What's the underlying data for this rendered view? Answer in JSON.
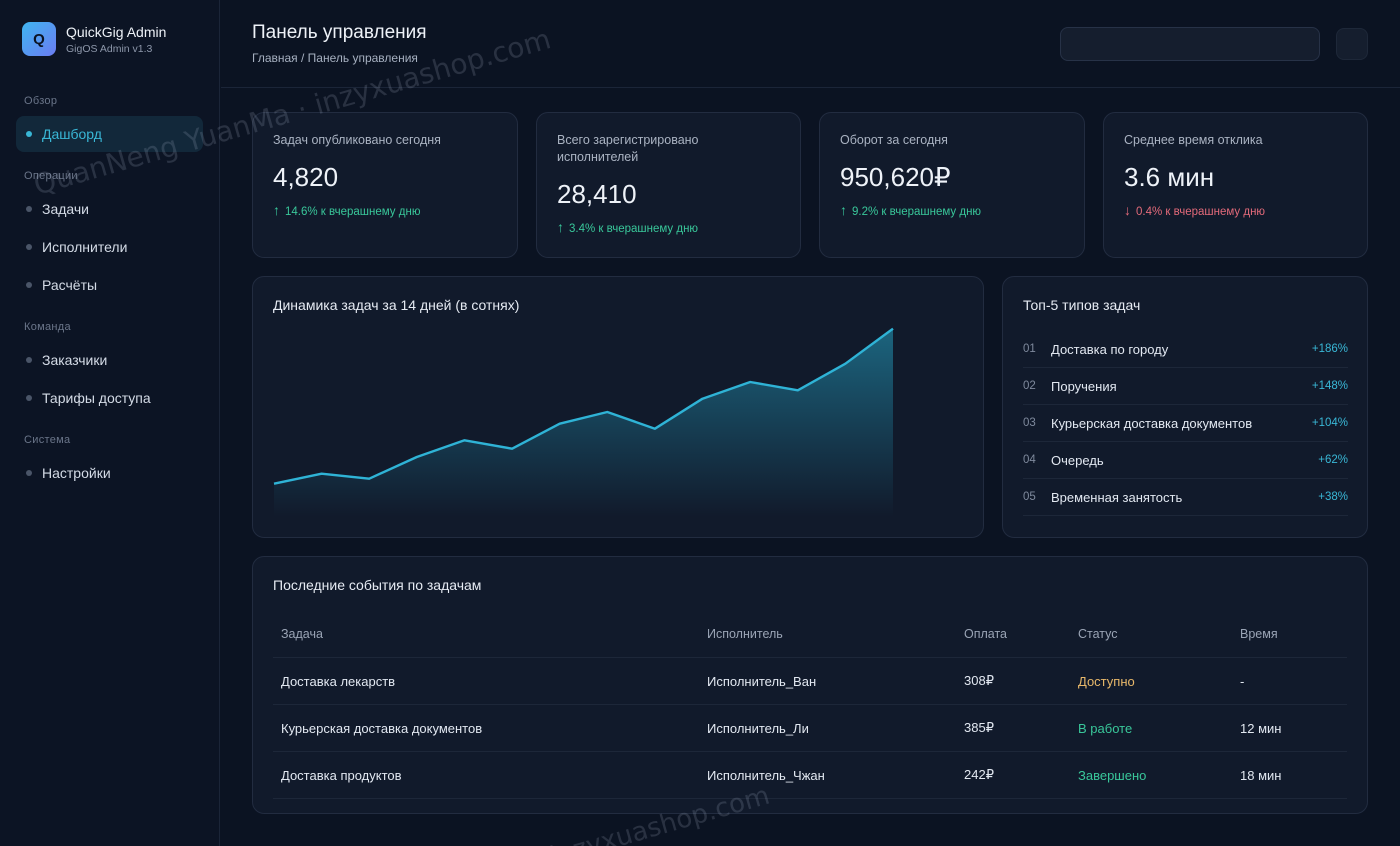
{
  "brand": {
    "logo_letter": "Q",
    "title": "QuickGig Admin",
    "subtitle": "GigOS Admin v1.3"
  },
  "sidebar": {
    "sections": [
      {
        "label": "Обзор",
        "items": [
          {
            "label": "Дашборд",
            "active": true
          }
        ]
      },
      {
        "label": "Операции",
        "items": [
          {
            "label": "Задачи"
          },
          {
            "label": "Исполнители"
          },
          {
            "label": "Расчёты"
          }
        ]
      },
      {
        "label": "Команда",
        "items": [
          {
            "label": "Заказчики"
          },
          {
            "label": "Тарифы доступа"
          }
        ]
      },
      {
        "label": "Система",
        "items": [
          {
            "label": "Настройки"
          }
        ]
      }
    ]
  },
  "header": {
    "title": "Панель управления",
    "breadcrumb": "Главная / Панель управления",
    "search_value": ""
  },
  "stats": [
    {
      "label": "Задач опубликовано сегодня",
      "value": "4,820",
      "delta": "14.6% к вчерашнему дню",
      "direction": "up"
    },
    {
      "label": "Всего зарегистрировано исполнителей",
      "value": "28,410",
      "delta": "3.4% к вчерашнему дню",
      "direction": "up"
    },
    {
      "label": "Оборот за сегодня",
      "value": "950,620₽",
      "delta": "9.2% к вчерашнему дню",
      "direction": "up"
    },
    {
      "label": "Среднее время отклика",
      "value": "3.6 мин",
      "delta": "0.4% к вчерашнему дню",
      "direction": "down"
    }
  ],
  "arrows": {
    "up": "↑",
    "down": "↓"
  },
  "chart_panel": {
    "title": "Динамика задач за 14 дней (в сотнях)"
  },
  "chart_data": {
    "type": "area",
    "title": "Динамика задач за 14 дней (в сотнях)",
    "x": [
      1,
      2,
      3,
      4,
      5,
      6,
      7,
      8,
      9,
      10,
      11,
      12,
      13,
      14
    ],
    "values": [
      20,
      26,
      23,
      36,
      46,
      41,
      56,
      63,
      53,
      71,
      81,
      76,
      92,
      113
    ],
    "ylim": [
      0,
      120
    ],
    "grid": false,
    "line_color": "#2fb3d6"
  },
  "top5": {
    "title": "Топ-5 типов задач",
    "items": [
      {
        "rank": "01",
        "name": "Доставка по городу",
        "pct": "+186%"
      },
      {
        "rank": "02",
        "name": "Поручения",
        "pct": "+148%"
      },
      {
        "rank": "03",
        "name": "Курьерская доставка документов",
        "pct": "+104%"
      },
      {
        "rank": "04",
        "name": "Очередь",
        "pct": "+62%"
      },
      {
        "rank": "05",
        "name": "Временная занятость",
        "pct": "+38%"
      }
    ]
  },
  "events": {
    "title": "Последние события по задачам",
    "columns": [
      "Задача",
      "Исполнитель",
      "Оплата",
      "Статус",
      "Время"
    ],
    "rows": [
      {
        "task": "Доставка лекарств",
        "worker": "Исполнитель_Ван",
        "pay": "308₽",
        "status": "Доступно",
        "status_kind": "available",
        "time": "-"
      },
      {
        "task": "Курьерская доставка документов",
        "worker": "Исполнитель_Ли",
        "pay": "385₽",
        "status": "В работе",
        "status_kind": "work",
        "time": "12 мин"
      },
      {
        "task": "Доставка продуктов",
        "worker": "Исполнитель_Чжан",
        "pay": "242₽",
        "status": "Завершено",
        "status_kind": "done",
        "time": "18 мин"
      }
    ]
  },
  "watermarks": [
    "QuanNeng YuanMa · inzyxuashop.com",
    "inzyxuashop.com"
  ]
}
